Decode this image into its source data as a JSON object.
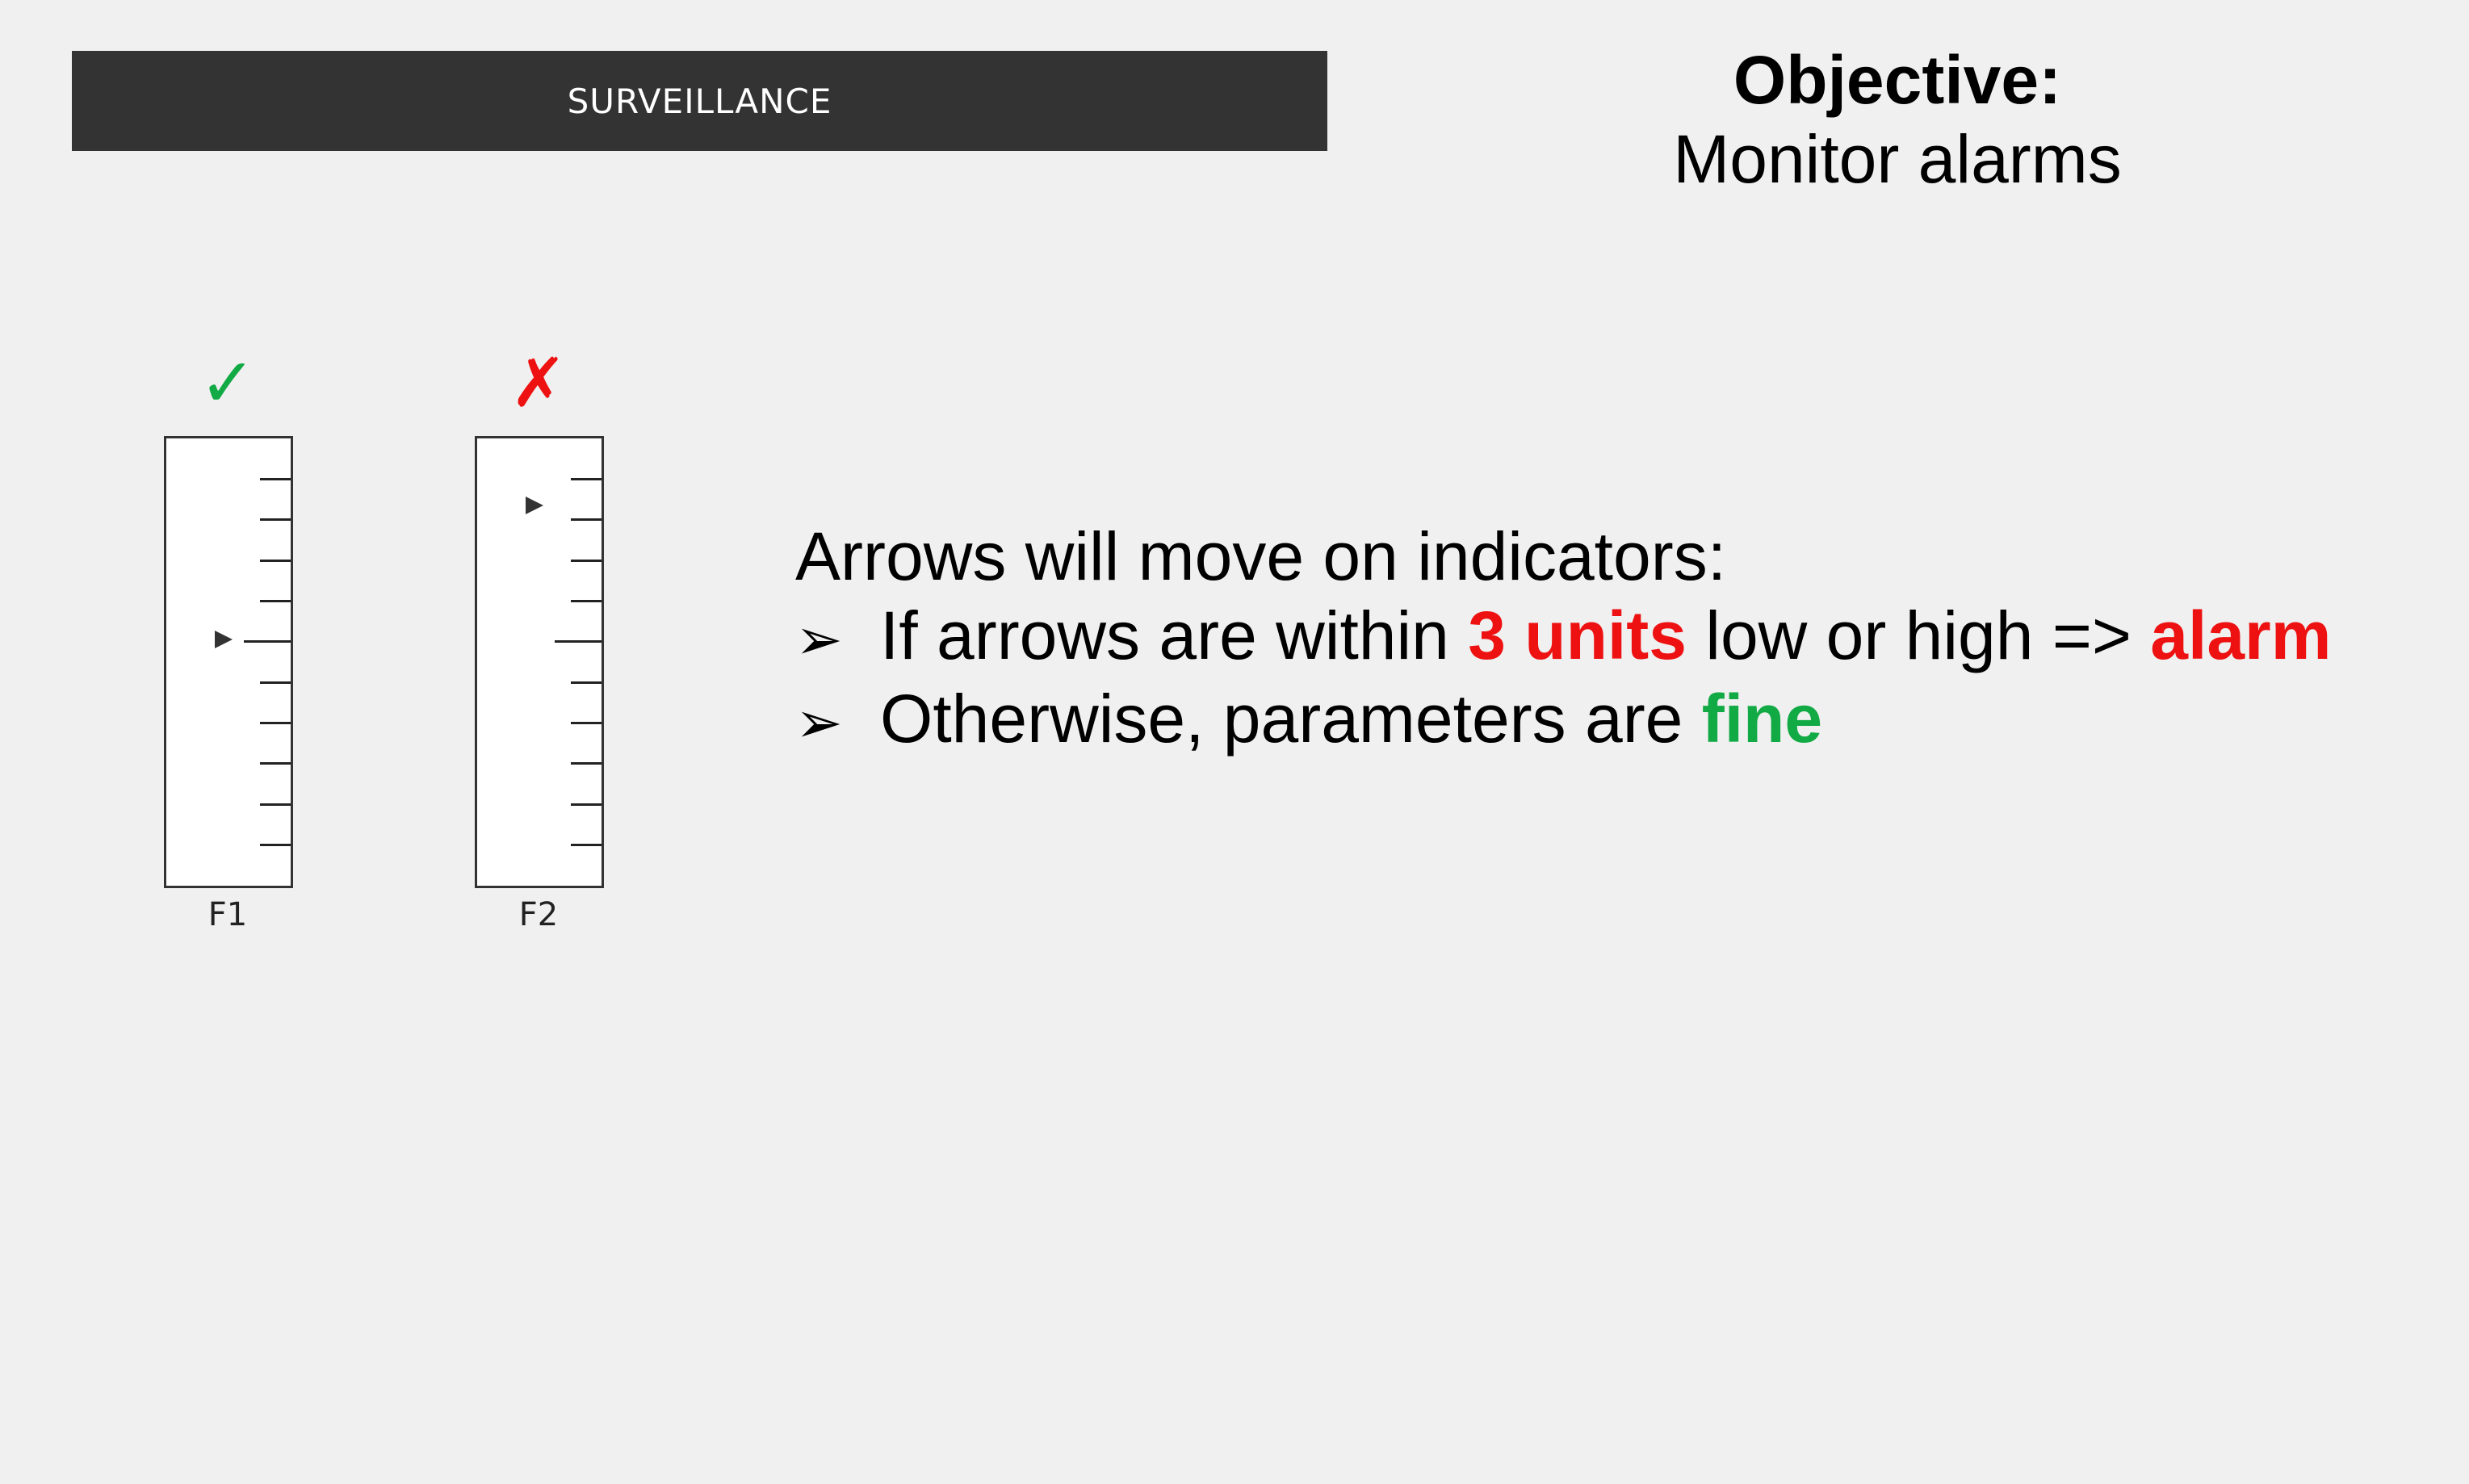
{
  "header": {
    "title": "SURVEILLANCE"
  },
  "objective": {
    "heading": "Objective:",
    "text": "Monitor alarms"
  },
  "gauges": [
    {
      "label": "F1",
      "status_glyph": "✓",
      "status": "ok",
      "status_color": "#11aa44",
      "pointer_position": 0.45,
      "ticks": 11
    },
    {
      "label": "F2",
      "status_glyph": "✗",
      "status": "alarm",
      "status_color": "#ee1111",
      "pointer_position": 0.15,
      "ticks": 11
    }
  ],
  "instructions": {
    "intro": "Arrows will move on indicators:",
    "bullet_icon": "arrowhead-bullet-icon",
    "bullet1": {
      "prefix": "If arrows are within ",
      "highlight1": "3 units",
      "middle": " low or high => ",
      "highlight2": "alarm"
    },
    "bullet2": {
      "prefix": "Otherwise, parameters are ",
      "highlight": "fine"
    }
  },
  "colors": {
    "alarm": "#ee1111",
    "fine": "#11aa44",
    "header_bg": "#333333",
    "background": "#f0f0f0"
  }
}
